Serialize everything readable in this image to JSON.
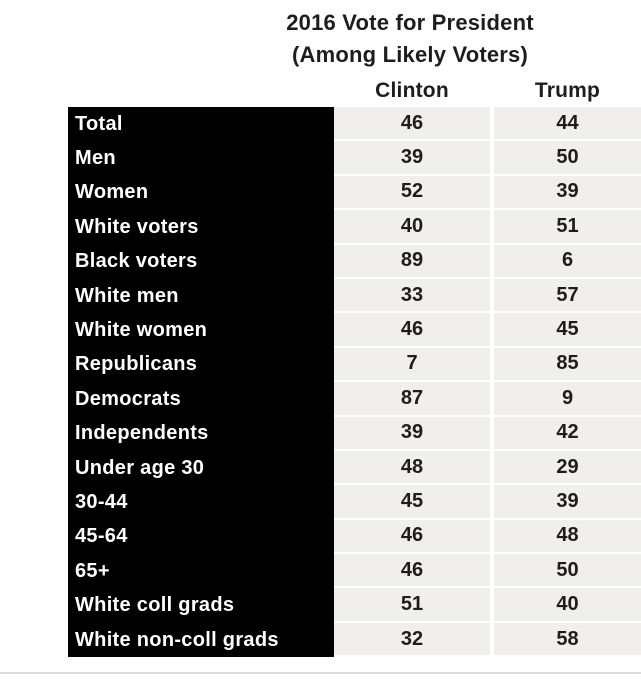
{
  "title": "2016 Vote for President",
  "subtitle": "(Among Likely Voters)",
  "columns": {
    "clinton": "Clinton",
    "trump": "Trump"
  },
  "rows": [
    {
      "label": "Total",
      "clinton": "46",
      "trump": "44"
    },
    {
      "label": "Men",
      "clinton": "39",
      "trump": "50"
    },
    {
      "label": "Women",
      "clinton": "52",
      "trump": "39"
    },
    {
      "label": "White voters",
      "clinton": "40",
      "trump": "51"
    },
    {
      "label": "Black voters",
      "clinton": "89",
      "trump": "6"
    },
    {
      "label": "White men",
      "clinton": "33",
      "trump": "57"
    },
    {
      "label": "White women",
      "clinton": "46",
      "trump": "45"
    },
    {
      "label": "Republicans",
      "clinton": "7",
      "trump": "85"
    },
    {
      "label": "Democrats",
      "clinton": "87",
      "trump": "9"
    },
    {
      "label": "Independents",
      "clinton": "39",
      "trump": "42"
    },
    {
      "label": "Under age 30",
      "clinton": "48",
      "trump": "29"
    },
    {
      "label": "30-44",
      "clinton": "45",
      "trump": "39"
    },
    {
      "label": "45-64",
      "clinton": "46",
      "trump": "48"
    },
    {
      "label": "65+",
      "clinton": "46",
      "trump": "50"
    },
    {
      "label": "White coll grads",
      "clinton": "51",
      "trump": "40"
    },
    {
      "label": "White non-coll grads",
      "clinton": "32",
      "trump": "58"
    }
  ],
  "colors": {
    "label_column_bg": "#000000",
    "cell_bg": "#f0efed",
    "text": "#1d1d1d",
    "label_text": "#ffffff",
    "divider": "#dcdcdc"
  },
  "chart_data": {
    "type": "table",
    "title": "2016 Vote for President",
    "subtitle": "(Among Likely Voters)",
    "columns": [
      "Clinton",
      "Trump"
    ],
    "categories": [
      "Total",
      "Men",
      "Women",
      "White voters",
      "Black voters",
      "White men",
      "White women",
      "Republicans",
      "Democrats",
      "Independents",
      "Under age 30",
      "30-44",
      "45-64",
      "65+",
      "White coll grads",
      "White non-coll grads"
    ],
    "series": [
      {
        "name": "Clinton",
        "values": [
          46,
          39,
          52,
          40,
          89,
          33,
          46,
          7,
          87,
          39,
          48,
          45,
          46,
          46,
          51,
          32
        ]
      },
      {
        "name": "Trump",
        "values": [
          44,
          50,
          39,
          51,
          6,
          57,
          45,
          85,
          9,
          42,
          29,
          39,
          48,
          50,
          40,
          58
        ]
      }
    ]
  }
}
